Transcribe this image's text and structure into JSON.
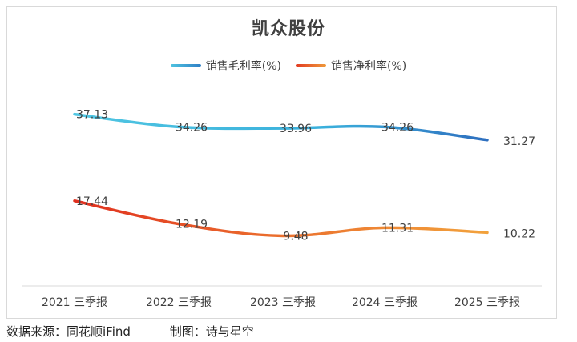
{
  "footer": {
    "source": "数据来源：同花顺iFind",
    "author": "制图：诗与星空"
  },
  "chart_data": {
    "type": "line",
    "title": "凯众股份",
    "categories": [
      "2021 三季报",
      "2022 三季报",
      "2023 三季报",
      "2024 三季报",
      "2025 三季报"
    ],
    "series": [
      {
        "name": "销售毛利率(%)",
        "values": [
          37.13,
          34.26,
          33.96,
          34.26,
          31.27
        ],
        "color": "#2f8fcf"
      },
      {
        "name": "销售净利率(%)",
        "values": [
          17.44,
          12.19,
          9.48,
          11.31,
          10.22
        ],
        "color": "#e8772e"
      }
    ],
    "ylim": [
      0,
      45
    ],
    "grid": false,
    "legend_position": "top",
    "smooth": true
  }
}
